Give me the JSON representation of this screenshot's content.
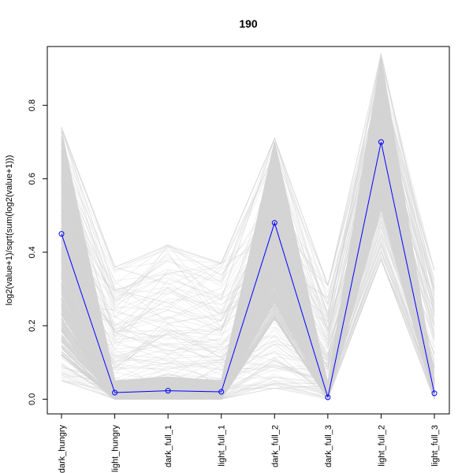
{
  "chart_data": {
    "type": "line",
    "title": "190",
    "ylabel": "log2(value+1)/sqrt(sum(log2(value+1)))",
    "xlabel": "",
    "categories": [
      "dark_hungry",
      "light_hungry",
      "dark_full_1",
      "light_full_1",
      "dark_full_2",
      "dark_full_3",
      "light_full_2",
      "light_full_3"
    ],
    "ylim": [
      -0.04,
      0.96
    ],
    "yticks": [
      0.0,
      0.2,
      0.4,
      0.6,
      0.8
    ],
    "grid": false,
    "legend": "none",
    "highlight_series": {
      "color": "#0000ff",
      "values": [
        0.45,
        0.018,
        0.023,
        0.02,
        0.48,
        0.005,
        0.7,
        0.016
      ]
    },
    "background_band": {
      "color": "#d3d3d3",
      "dense_low": [
        0.12,
        0.0,
        0.0,
        0.0,
        0.22,
        0.0,
        0.52,
        0.0
      ],
      "dense_high": [
        0.73,
        0.05,
        0.06,
        0.05,
        0.7,
        0.04,
        0.93,
        0.05
      ],
      "sparse_low": [
        0.05,
        0.0,
        0.0,
        0.0,
        0.03,
        0.0,
        0.38,
        0.0
      ],
      "sparse_high": [
        0.74,
        0.36,
        0.42,
        0.37,
        0.71,
        0.31,
        0.94,
        0.35
      ]
    }
  }
}
